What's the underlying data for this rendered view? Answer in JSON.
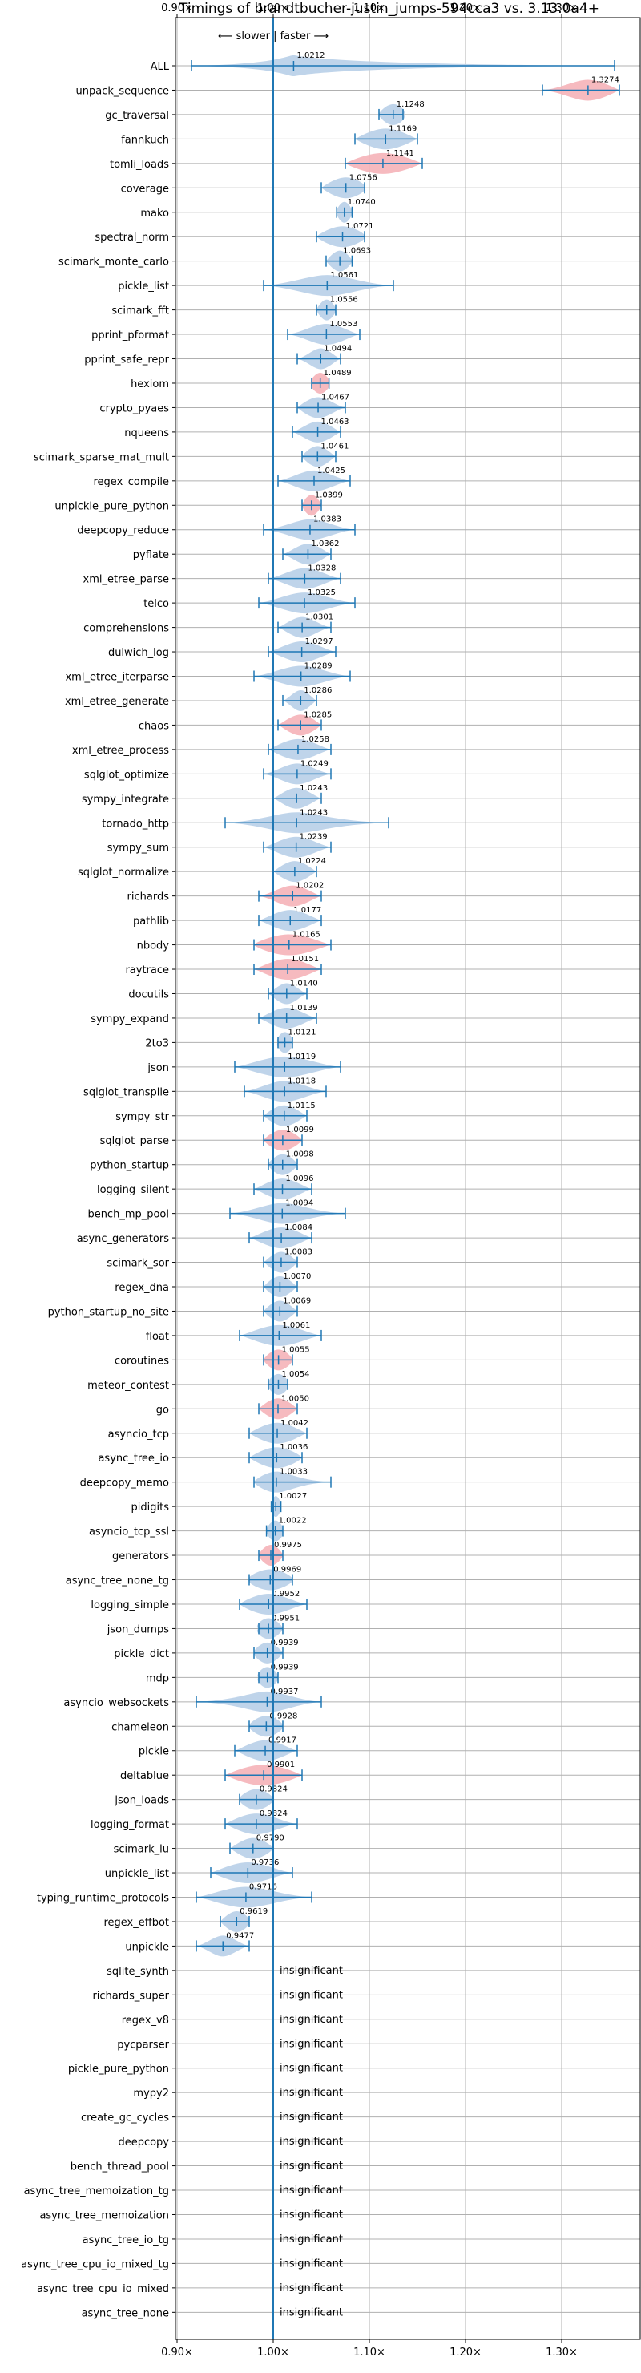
{
  "chart_data": {
    "type": "violin",
    "title": "Timings of brandtbucher-justin_jumps-594cca3 vs. 3.13.0a4+",
    "direction_label": "⟵ slower | faster ⟶",
    "insignificant_label": "insignificant",
    "xlim": [
      0.9,
      1.385
    ],
    "x_ticks": [
      {
        "value": 0.9,
        "label": "0.90×"
      },
      {
        "value": 1.0,
        "label": "1.00×"
      },
      {
        "value": 1.1,
        "label": "1.10×"
      },
      {
        "value": 1.2,
        "label": "1.20×"
      },
      {
        "value": 1.3,
        "label": "1.30×"
      }
    ],
    "grid": true,
    "colors": {
      "faster": "#b8cfe8",
      "slower": "#f5b3b8",
      "line": "#1f77b4",
      "grid": "#b0b0b0"
    },
    "benchmarks": [
      {
        "name": "ALL",
        "value": 1.0212,
        "label": "1.0212",
        "low": 0.915,
        "high": 1.355,
        "spread": 0.012,
        "color": "faster"
      },
      {
        "name": "unpack_sequence",
        "value": 1.3274,
        "label": "1.3274",
        "low": 1.28,
        "high": 1.36,
        "spread": 0.022,
        "color": "slower"
      },
      {
        "name": "gc_traversal",
        "value": 1.1248,
        "label": "1.1248",
        "low": 1.11,
        "high": 1.135,
        "spread": 0.012,
        "color": "faster"
      },
      {
        "name": "fannkuch",
        "value": 1.1169,
        "label": "1.1169",
        "low": 1.085,
        "high": 1.15,
        "spread": 0.022,
        "color": "faster"
      },
      {
        "name": "tomli_loads",
        "value": 1.1141,
        "label": "1.1141",
        "low": 1.075,
        "high": 1.155,
        "spread": 0.028,
        "color": "slower"
      },
      {
        "name": "coverage",
        "value": 1.0756,
        "label": "1.0756",
        "low": 1.05,
        "high": 1.095,
        "spread": 0.018,
        "color": "faster"
      },
      {
        "name": "mako",
        "value": 1.074,
        "label": "1.0740",
        "low": 1.066,
        "high": 1.082,
        "spread": 0.007,
        "color": "faster"
      },
      {
        "name": "spectral_norm",
        "value": 1.0721,
        "label": "1.0721",
        "low": 1.045,
        "high": 1.095,
        "spread": 0.02,
        "color": "faster"
      },
      {
        "name": "scimark_monte_carlo",
        "value": 1.0693,
        "label": "1.0693",
        "low": 1.055,
        "high": 1.082,
        "spread": 0.01,
        "color": "faster"
      },
      {
        "name": "pickle_list",
        "value": 1.0561,
        "label": "1.0561",
        "low": 0.99,
        "high": 1.125,
        "spread": 0.03,
        "color": "faster"
      },
      {
        "name": "scimark_fft",
        "value": 1.0556,
        "label": "1.0556",
        "low": 1.045,
        "high": 1.065,
        "spread": 0.008,
        "color": "faster"
      },
      {
        "name": "pprint_pformat",
        "value": 1.0553,
        "label": "1.0553",
        "low": 1.015,
        "high": 1.09,
        "spread": 0.02,
        "color": "faster"
      },
      {
        "name": "pprint_safe_repr",
        "value": 1.0494,
        "label": "1.0494",
        "low": 1.025,
        "high": 1.07,
        "spread": 0.012,
        "color": "faster"
      },
      {
        "name": "hexiom",
        "value": 1.0489,
        "label": "1.0489",
        "low": 1.04,
        "high": 1.058,
        "spread": 0.009,
        "color": "slower"
      },
      {
        "name": "crypto_pyaes",
        "value": 1.0467,
        "label": "1.0467",
        "low": 1.025,
        "high": 1.075,
        "spread": 0.015,
        "color": "faster"
      },
      {
        "name": "nqueens",
        "value": 1.0463,
        "label": "1.0463",
        "low": 1.02,
        "high": 1.07,
        "spread": 0.015,
        "color": "faster"
      },
      {
        "name": "scimark_sparse_mat_mult",
        "value": 1.0461,
        "label": "1.0461",
        "low": 1.03,
        "high": 1.065,
        "spread": 0.012,
        "color": "faster"
      },
      {
        "name": "regex_compile",
        "value": 1.0425,
        "label": "1.0425",
        "low": 1.005,
        "high": 1.08,
        "spread": 0.02,
        "color": "faster"
      },
      {
        "name": "unpickle_pure_python",
        "value": 1.0399,
        "label": "1.0399",
        "low": 1.03,
        "high": 1.05,
        "spread": 0.008,
        "color": "slower"
      },
      {
        "name": "deepcopy_reduce",
        "value": 1.0383,
        "label": "1.0383",
        "low": 0.99,
        "high": 1.085,
        "spread": 0.022,
        "color": "faster"
      },
      {
        "name": "pyflate",
        "value": 1.0362,
        "label": "1.0362",
        "low": 1.01,
        "high": 1.06,
        "spread": 0.015,
        "color": "faster"
      },
      {
        "name": "xml_etree_parse",
        "value": 1.0328,
        "label": "1.0328",
        "low": 0.995,
        "high": 1.07,
        "spread": 0.02,
        "color": "faster"
      },
      {
        "name": "telco",
        "value": 1.0325,
        "label": "1.0325",
        "low": 0.985,
        "high": 1.085,
        "spread": 0.025,
        "color": "faster"
      },
      {
        "name": "comprehensions",
        "value": 1.0301,
        "label": "1.0301",
        "low": 1.005,
        "high": 1.06,
        "spread": 0.015,
        "color": "faster"
      },
      {
        "name": "dulwich_log",
        "value": 1.0297,
        "label": "1.0297",
        "low": 0.995,
        "high": 1.065,
        "spread": 0.02,
        "color": "faster"
      },
      {
        "name": "xml_etree_iterparse",
        "value": 1.0289,
        "label": "1.0289",
        "low": 0.98,
        "high": 1.08,
        "spread": 0.025,
        "color": "faster"
      },
      {
        "name": "xml_etree_generate",
        "value": 1.0286,
        "label": "1.0286",
        "low": 1.01,
        "high": 1.045,
        "spread": 0.01,
        "color": "faster"
      },
      {
        "name": "chaos",
        "value": 1.0285,
        "label": "1.0285",
        "low": 1.005,
        "high": 1.05,
        "spread": 0.015,
        "color": "slower"
      },
      {
        "name": "xml_etree_process",
        "value": 1.0258,
        "label": "1.0258",
        "low": 0.995,
        "high": 1.06,
        "spread": 0.02,
        "color": "faster"
      },
      {
        "name": "sqlglot_optimize",
        "value": 1.0249,
        "label": "1.0249",
        "low": 0.99,
        "high": 1.06,
        "spread": 0.018,
        "color": "faster"
      },
      {
        "name": "sympy_integrate",
        "value": 1.0243,
        "label": "1.0243",
        "low": 1.0,
        "high": 1.05,
        "spread": 0.015,
        "color": "faster"
      },
      {
        "name": "tornado_http",
        "value": 1.0243,
        "label": "1.0243",
        "low": 0.95,
        "high": 1.12,
        "spread": 0.03,
        "color": "faster"
      },
      {
        "name": "sympy_sum",
        "value": 1.0239,
        "label": "1.0239",
        "low": 0.99,
        "high": 1.06,
        "spread": 0.02,
        "color": "faster"
      },
      {
        "name": "sqlglot_normalize",
        "value": 1.0224,
        "label": "1.0224",
        "low": 1.0,
        "high": 1.045,
        "spread": 0.015,
        "color": "faster"
      },
      {
        "name": "richards",
        "value": 1.0202,
        "label": "1.0202",
        "low": 0.985,
        "high": 1.05,
        "spread": 0.018,
        "color": "slower"
      },
      {
        "name": "pathlib",
        "value": 1.0177,
        "label": "1.0177",
        "low": 0.985,
        "high": 1.05,
        "spread": 0.02,
        "color": "faster"
      },
      {
        "name": "nbody",
        "value": 1.0165,
        "label": "1.0165",
        "low": 0.98,
        "high": 1.06,
        "spread": 0.028,
        "color": "slower"
      },
      {
        "name": "raytrace",
        "value": 1.0151,
        "label": "1.0151",
        "low": 0.98,
        "high": 1.05,
        "spread": 0.022,
        "color": "slower"
      },
      {
        "name": "docutils",
        "value": 1.014,
        "label": "1.0140",
        "low": 0.995,
        "high": 1.035,
        "spread": 0.012,
        "color": "faster"
      },
      {
        "name": "sympy_expand",
        "value": 1.0139,
        "label": "1.0139",
        "low": 0.985,
        "high": 1.045,
        "spread": 0.018,
        "color": "faster"
      },
      {
        "name": "2to3",
        "value": 1.0121,
        "label": "1.0121",
        "low": 1.005,
        "high": 1.02,
        "spread": 0.008,
        "color": "faster"
      },
      {
        "name": "json",
        "value": 1.0119,
        "label": "1.0119",
        "low": 0.96,
        "high": 1.07,
        "spread": 0.03,
        "color": "faster"
      },
      {
        "name": "sqlglot_transpile",
        "value": 1.0118,
        "label": "1.0118",
        "low": 0.97,
        "high": 1.055,
        "spread": 0.022,
        "color": "faster"
      },
      {
        "name": "sympy_str",
        "value": 1.0115,
        "label": "1.0115",
        "low": 0.99,
        "high": 1.035,
        "spread": 0.015,
        "color": "faster"
      },
      {
        "name": "sqlglot_parse",
        "value": 1.0099,
        "label": "1.0099",
        "low": 0.99,
        "high": 1.03,
        "spread": 0.015,
        "color": "slower"
      },
      {
        "name": "python_startup",
        "value": 1.0098,
        "label": "1.0098",
        "low": 0.995,
        "high": 1.025,
        "spread": 0.012,
        "color": "faster"
      },
      {
        "name": "logging_silent",
        "value": 1.0096,
        "label": "1.0096",
        "low": 0.98,
        "high": 1.04,
        "spread": 0.018,
        "color": "faster"
      },
      {
        "name": "bench_mp_pool",
        "value": 1.0094,
        "label": "1.0094",
        "low": 0.955,
        "high": 1.075,
        "spread": 0.025,
        "color": "faster"
      },
      {
        "name": "async_generators",
        "value": 1.0084,
        "label": "1.0084",
        "low": 0.975,
        "high": 1.04,
        "spread": 0.02,
        "color": "faster"
      },
      {
        "name": "scimark_sor",
        "value": 1.0083,
        "label": "1.0083",
        "low": 0.99,
        "high": 1.025,
        "spread": 0.012,
        "color": "faster"
      },
      {
        "name": "regex_dna",
        "value": 1.007,
        "label": "1.0070",
        "low": 0.99,
        "high": 1.025,
        "spread": 0.012,
        "color": "faster"
      },
      {
        "name": "python_startup_no_site",
        "value": 1.0069,
        "label": "1.0069",
        "low": 0.99,
        "high": 1.025,
        "spread": 0.012,
        "color": "faster"
      },
      {
        "name": "float",
        "value": 1.0061,
        "label": "1.0061",
        "low": 0.965,
        "high": 1.05,
        "spread": 0.025,
        "color": "faster"
      },
      {
        "name": "coroutines",
        "value": 1.0055,
        "label": "1.0055",
        "low": 0.99,
        "high": 1.02,
        "spread": 0.012,
        "color": "slower"
      },
      {
        "name": "meteor_contest",
        "value": 1.0054,
        "label": "1.0054",
        "low": 0.995,
        "high": 1.015,
        "spread": 0.01,
        "color": "faster"
      },
      {
        "name": "go",
        "value": 1.005,
        "label": "1.0050",
        "low": 0.985,
        "high": 1.025,
        "spread": 0.014,
        "color": "slower"
      },
      {
        "name": "asyncio_tcp",
        "value": 1.0042,
        "label": "1.0042",
        "low": 0.975,
        "high": 1.035,
        "spread": 0.02,
        "color": "faster"
      },
      {
        "name": "async_tree_io",
        "value": 1.0036,
        "label": "1.0036",
        "low": 0.975,
        "high": 1.03,
        "spread": 0.02,
        "color": "faster"
      },
      {
        "name": "deepcopy_memo",
        "value": 1.0033,
        "label": "1.0033",
        "low": 0.98,
        "high": 1.06,
        "spread": 0.018,
        "color": "faster"
      },
      {
        "name": "pidigits",
        "value": 1.0027,
        "label": "1.0027",
        "low": 0.998,
        "high": 1.008,
        "spread": 0.005,
        "color": "faster"
      },
      {
        "name": "asyncio_tcp_ssl",
        "value": 1.0022,
        "label": "1.0022",
        "low": 0.993,
        "high": 1.01,
        "spread": 0.008,
        "color": "faster"
      },
      {
        "name": "generators",
        "value": 0.9975,
        "label": "0.9975",
        "low": 0.985,
        "high": 1.01,
        "spread": 0.01,
        "color": "slower"
      },
      {
        "name": "async_tree_none_tg",
        "value": 0.9969,
        "label": "0.9969",
        "low": 0.975,
        "high": 1.02,
        "spread": 0.02,
        "color": "faster"
      },
      {
        "name": "logging_simple",
        "value": 0.9952,
        "label": "0.9952",
        "low": 0.965,
        "high": 1.035,
        "spread": 0.022,
        "color": "faster"
      },
      {
        "name": "json_dumps",
        "value": 0.9951,
        "label": "0.9951",
        "low": 0.985,
        "high": 1.01,
        "spread": 0.012,
        "color": "faster"
      },
      {
        "name": "pickle_dict",
        "value": 0.9939,
        "label": "0.9939",
        "low": 0.98,
        "high": 1.01,
        "spread": 0.012,
        "color": "faster"
      },
      {
        "name": "mdp",
        "value": 0.9939,
        "label": "0.9939",
        "low": 0.985,
        "high": 1.005,
        "spread": 0.01,
        "color": "faster"
      },
      {
        "name": "asyncio_websockets",
        "value": 0.9937,
        "label": "0.9937",
        "low": 0.92,
        "high": 1.05,
        "spread": 0.025,
        "color": "faster"
      },
      {
        "name": "chameleon",
        "value": 0.9928,
        "label": "0.9928",
        "low": 0.975,
        "high": 1.01,
        "spread": 0.015,
        "color": "faster"
      },
      {
        "name": "pickle",
        "value": 0.9917,
        "label": "0.9917",
        "low": 0.96,
        "high": 1.025,
        "spread": 0.02,
        "color": "faster"
      },
      {
        "name": "deltablue",
        "value": 0.9901,
        "label": "0.9901",
        "low": 0.95,
        "high": 1.03,
        "spread": 0.028,
        "color": "slower"
      },
      {
        "name": "json_loads",
        "value": 0.9824,
        "label": "0.9824",
        "low": 0.965,
        "high": 1.0,
        "spread": 0.015,
        "color": "faster"
      },
      {
        "name": "logging_format",
        "value": 0.9824,
        "label": "0.9824",
        "low": 0.95,
        "high": 1.025,
        "spread": 0.022,
        "color": "faster"
      },
      {
        "name": "scimark_lu",
        "value": 0.979,
        "label": "0.9790",
        "low": 0.955,
        "high": 1.0,
        "spread": 0.016,
        "color": "faster"
      },
      {
        "name": "unpickle_list",
        "value": 0.9736,
        "label": "0.9736",
        "low": 0.935,
        "high": 1.02,
        "spread": 0.025,
        "color": "faster"
      },
      {
        "name": "typing_runtime_protocols",
        "value": 0.9716,
        "label": "0.9716",
        "low": 0.92,
        "high": 1.04,
        "spread": 0.03,
        "color": "faster"
      },
      {
        "name": "regex_effbot",
        "value": 0.9619,
        "label": "0.9619",
        "low": 0.945,
        "high": 0.975,
        "spread": 0.012,
        "color": "faster"
      },
      {
        "name": "unpickle",
        "value": 0.9477,
        "label": "0.9477",
        "low": 0.92,
        "high": 0.975,
        "spread": 0.014,
        "color": "faster"
      },
      {
        "name": "sqlite_synth",
        "value": null,
        "label": "",
        "low": null,
        "high": null,
        "spread": 0,
        "color": "faster"
      },
      {
        "name": "richards_super",
        "value": null,
        "label": "",
        "low": null,
        "high": null,
        "spread": 0,
        "color": "faster"
      },
      {
        "name": "regex_v8",
        "value": null,
        "label": "",
        "low": null,
        "high": null,
        "spread": 0,
        "color": "faster"
      },
      {
        "name": "pycparser",
        "value": null,
        "label": "",
        "low": null,
        "high": null,
        "spread": 0,
        "color": "faster"
      },
      {
        "name": "pickle_pure_python",
        "value": null,
        "label": "",
        "low": null,
        "high": null,
        "spread": 0,
        "color": "faster"
      },
      {
        "name": "mypy2",
        "value": null,
        "label": "",
        "low": null,
        "high": null,
        "spread": 0,
        "color": "faster"
      },
      {
        "name": "create_gc_cycles",
        "value": null,
        "label": "",
        "low": null,
        "high": null,
        "spread": 0,
        "color": "faster"
      },
      {
        "name": "deepcopy",
        "value": null,
        "label": "",
        "low": null,
        "high": null,
        "spread": 0,
        "color": "faster"
      },
      {
        "name": "bench_thread_pool",
        "value": null,
        "label": "",
        "low": null,
        "high": null,
        "spread": 0,
        "color": "faster"
      },
      {
        "name": "async_tree_memoization_tg",
        "value": null,
        "label": "",
        "low": null,
        "high": null,
        "spread": 0,
        "color": "faster"
      },
      {
        "name": "async_tree_memoization",
        "value": null,
        "label": "",
        "low": null,
        "high": null,
        "spread": 0,
        "color": "faster"
      },
      {
        "name": "async_tree_io_tg",
        "value": null,
        "label": "",
        "low": null,
        "high": null,
        "spread": 0,
        "color": "faster"
      },
      {
        "name": "async_tree_cpu_io_mixed_tg",
        "value": null,
        "label": "",
        "low": null,
        "high": null,
        "spread": 0,
        "color": "faster"
      },
      {
        "name": "async_tree_cpu_io_mixed",
        "value": null,
        "label": "",
        "low": null,
        "high": null,
        "spread": 0,
        "color": "faster"
      },
      {
        "name": "async_tree_none",
        "value": null,
        "label": "",
        "low": null,
        "high": null,
        "spread": 0,
        "color": "faster"
      }
    ]
  }
}
